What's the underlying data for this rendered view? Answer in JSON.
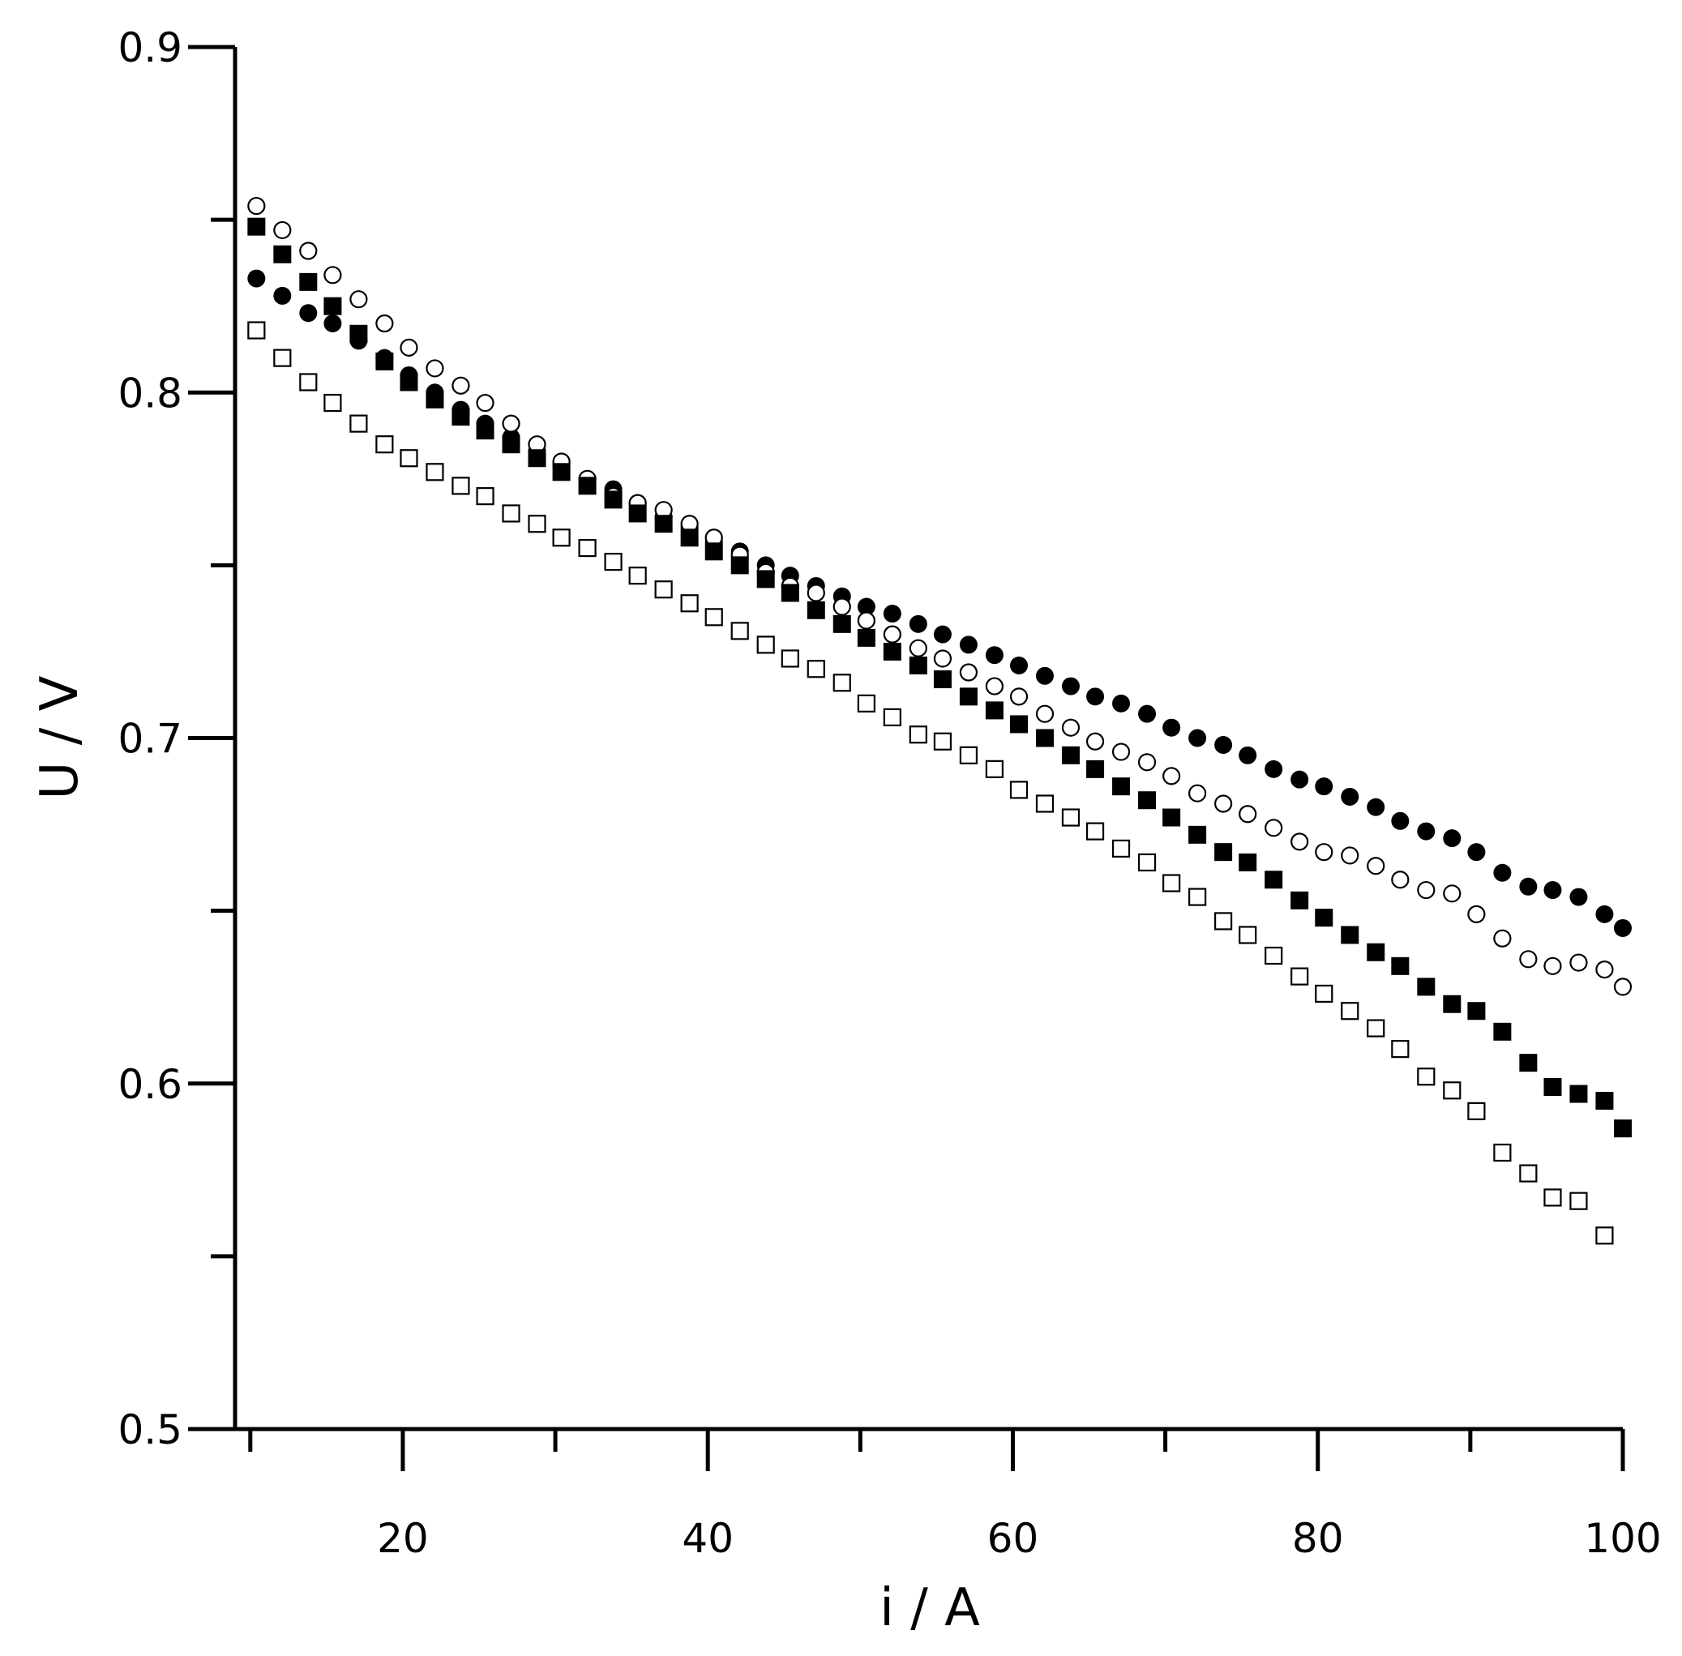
{
  "chart_data": {
    "type": "scatter",
    "title": "",
    "xlabel": "i / A",
    "ylabel": "U / V",
    "xlim": [
      9,
      100
    ],
    "ylim": [
      0.5,
      0.9
    ],
    "x_ticks_major": [
      20,
      40,
      60,
      80,
      100
    ],
    "x_ticks_minor": [
      10,
      30,
      50,
      70,
      90
    ],
    "y_ticks_major": [
      0.5,
      0.6,
      0.7,
      0.8,
      0.9
    ],
    "y_ticks_minor": [
      0.55,
      0.65,
      0.75,
      0.85
    ],
    "y_tick_labels": [
      "0.5",
      "0.6",
      "0.7",
      "0.8",
      "0.9"
    ],
    "x_tick_labels": [
      "20",
      "40",
      "60",
      "80",
      "100"
    ],
    "grid": false,
    "legend": "none",
    "series": [
      {
        "marker": "filled-circle",
        "color": "#000000",
        "points": [
          [
            10.4,
            0.833
          ],
          [
            12.1,
            0.828
          ],
          [
            13.8,
            0.823
          ],
          [
            15.4,
            0.82
          ],
          [
            17.1,
            0.815
          ],
          [
            18.8,
            0.81
          ],
          [
            20.4,
            0.805
          ],
          [
            22.1,
            0.8
          ],
          [
            23.8,
            0.795
          ],
          [
            25.4,
            0.791
          ],
          [
            27.1,
            0.787
          ],
          [
            28.8,
            0.783
          ],
          [
            30.4,
            0.779
          ],
          [
            32.1,
            0.775
          ],
          [
            33.8,
            0.772
          ],
          [
            35.4,
            0.768
          ],
          [
            37.1,
            0.764
          ],
          [
            38.8,
            0.761
          ],
          [
            40.4,
            0.757
          ],
          [
            42.1,
            0.754
          ],
          [
            43.8,
            0.75
          ],
          [
            45.4,
            0.747
          ],
          [
            47.1,
            0.744
          ],
          [
            48.8,
            0.741
          ],
          [
            50.4,
            0.738
          ],
          [
            52.1,
            0.736
          ],
          [
            53.8,
            0.733
          ],
          [
            55.4,
            0.73
          ],
          [
            57.1,
            0.727
          ],
          [
            58.8,
            0.724
          ],
          [
            60.4,
            0.721
          ],
          [
            62.1,
            0.718
          ],
          [
            63.8,
            0.715
          ],
          [
            65.4,
            0.712
          ],
          [
            67.1,
            0.71
          ],
          [
            68.8,
            0.707
          ],
          [
            70.4,
            0.703
          ],
          [
            72.1,
            0.7
          ],
          [
            73.8,
            0.698
          ],
          [
            75.4,
            0.695
          ],
          [
            77.1,
            0.691
          ],
          [
            78.8,
            0.688
          ],
          [
            80.4,
            0.686
          ],
          [
            82.1,
            0.683
          ],
          [
            83.8,
            0.68
          ],
          [
            85.4,
            0.676
          ],
          [
            87.1,
            0.673
          ],
          [
            88.8,
            0.671
          ],
          [
            90.4,
            0.667
          ],
          [
            92.1,
            0.661
          ],
          [
            93.8,
            0.657
          ],
          [
            95.4,
            0.656
          ],
          [
            97.1,
            0.654
          ],
          [
            98.8,
            0.649
          ],
          [
            100.0,
            0.645
          ]
        ]
      },
      {
        "marker": "open-circle",
        "color": "#000000",
        "points": [
          [
            10.4,
            0.854
          ],
          [
            12.1,
            0.847
          ],
          [
            13.8,
            0.841
          ],
          [
            15.4,
            0.834
          ],
          [
            17.1,
            0.827
          ],
          [
            18.8,
            0.82
          ],
          [
            20.4,
            0.813
          ],
          [
            22.1,
            0.807
          ],
          [
            23.8,
            0.802
          ],
          [
            25.4,
            0.797
          ],
          [
            27.1,
            0.791
          ],
          [
            28.8,
            0.785
          ],
          [
            30.4,
            0.78
          ],
          [
            32.1,
            0.775
          ],
          [
            33.8,
            0.77
          ],
          [
            35.4,
            0.768
          ],
          [
            37.1,
            0.766
          ],
          [
            38.8,
            0.762
          ],
          [
            40.4,
            0.758
          ],
          [
            42.1,
            0.753
          ],
          [
            43.8,
            0.748
          ],
          [
            45.4,
            0.744
          ],
          [
            47.1,
            0.742
          ],
          [
            48.8,
            0.738
          ],
          [
            50.4,
            0.734
          ],
          [
            52.1,
            0.73
          ],
          [
            53.8,
            0.726
          ],
          [
            55.4,
            0.723
          ],
          [
            57.1,
            0.719
          ],
          [
            58.8,
            0.715
          ],
          [
            60.4,
            0.712
          ],
          [
            62.1,
            0.707
          ],
          [
            63.8,
            0.703
          ],
          [
            65.4,
            0.699
          ],
          [
            67.1,
            0.696
          ],
          [
            68.8,
            0.693
          ],
          [
            70.4,
            0.689
          ],
          [
            72.1,
            0.684
          ],
          [
            73.8,
            0.681
          ],
          [
            75.4,
            0.678
          ],
          [
            77.1,
            0.674
          ],
          [
            78.8,
            0.67
          ],
          [
            80.4,
            0.667
          ],
          [
            82.1,
            0.666
          ],
          [
            83.8,
            0.663
          ],
          [
            85.4,
            0.659
          ],
          [
            87.1,
            0.656
          ],
          [
            88.8,
            0.655
          ],
          [
            90.4,
            0.649
          ],
          [
            92.1,
            0.642
          ],
          [
            93.8,
            0.636
          ],
          [
            95.4,
            0.634
          ],
          [
            97.1,
            0.635
          ],
          [
            98.8,
            0.633
          ],
          [
            100.0,
            0.628
          ]
        ]
      },
      {
        "marker": "filled-square",
        "color": "#000000",
        "points": [
          [
            10.4,
            0.848
          ],
          [
            12.1,
            0.84
          ],
          [
            13.8,
            0.832
          ],
          [
            15.4,
            0.825
          ],
          [
            17.1,
            0.817
          ],
          [
            18.8,
            0.809
          ],
          [
            20.4,
            0.803
          ],
          [
            22.1,
            0.798
          ],
          [
            23.8,
            0.793
          ],
          [
            25.4,
            0.789
          ],
          [
            27.1,
            0.785
          ],
          [
            28.8,
            0.781
          ],
          [
            30.4,
            0.777
          ],
          [
            32.1,
            0.773
          ],
          [
            33.8,
            0.769
          ],
          [
            35.4,
            0.765
          ],
          [
            37.1,
            0.762
          ],
          [
            38.8,
            0.758
          ],
          [
            40.4,
            0.754
          ],
          [
            42.1,
            0.75
          ],
          [
            43.8,
            0.746
          ],
          [
            45.4,
            0.742
          ],
          [
            47.1,
            0.737
          ],
          [
            48.8,
            0.733
          ],
          [
            50.4,
            0.729
          ],
          [
            52.1,
            0.725
          ],
          [
            53.8,
            0.721
          ],
          [
            55.4,
            0.717
          ],
          [
            57.1,
            0.712
          ],
          [
            58.8,
            0.708
          ],
          [
            60.4,
            0.704
          ],
          [
            62.1,
            0.7
          ],
          [
            63.8,
            0.695
          ],
          [
            65.4,
            0.691
          ],
          [
            67.1,
            0.686
          ],
          [
            68.8,
            0.682
          ],
          [
            70.4,
            0.677
          ],
          [
            72.1,
            0.672
          ],
          [
            73.8,
            0.667
          ],
          [
            75.4,
            0.664
          ],
          [
            77.1,
            0.659
          ],
          [
            78.8,
            0.653
          ],
          [
            80.4,
            0.648
          ],
          [
            82.1,
            0.643
          ],
          [
            83.8,
            0.638
          ],
          [
            85.4,
            0.634
          ],
          [
            87.1,
            0.628
          ],
          [
            88.8,
            0.623
          ],
          [
            90.4,
            0.621
          ],
          [
            92.1,
            0.615
          ],
          [
            93.8,
            0.606
          ],
          [
            95.4,
            0.599
          ],
          [
            97.1,
            0.597
          ],
          [
            98.8,
            0.595
          ],
          [
            100.0,
            0.587
          ]
        ]
      },
      {
        "marker": "open-square",
        "color": "#000000",
        "points": [
          [
            10.4,
            0.818
          ],
          [
            12.1,
            0.81
          ],
          [
            13.8,
            0.803
          ],
          [
            15.4,
            0.797
          ],
          [
            17.1,
            0.791
          ],
          [
            18.8,
            0.785
          ],
          [
            20.4,
            0.781
          ],
          [
            22.1,
            0.777
          ],
          [
            23.8,
            0.773
          ],
          [
            25.4,
            0.77
          ],
          [
            27.1,
            0.765
          ],
          [
            28.8,
            0.762
          ],
          [
            30.4,
            0.758
          ],
          [
            32.1,
            0.755
          ],
          [
            33.8,
            0.751
          ],
          [
            35.4,
            0.747
          ],
          [
            37.1,
            0.743
          ],
          [
            38.8,
            0.739
          ],
          [
            40.4,
            0.735
          ],
          [
            42.1,
            0.731
          ],
          [
            43.8,
            0.727
          ],
          [
            45.4,
            0.723
          ],
          [
            47.1,
            0.72
          ],
          [
            48.8,
            0.716
          ],
          [
            50.4,
            0.71
          ],
          [
            52.1,
            0.706
          ],
          [
            53.8,
            0.701
          ],
          [
            55.4,
            0.699
          ],
          [
            57.1,
            0.695
          ],
          [
            58.8,
            0.691
          ],
          [
            60.4,
            0.685
          ],
          [
            62.1,
            0.681
          ],
          [
            63.8,
            0.677
          ],
          [
            65.4,
            0.673
          ],
          [
            67.1,
            0.668
          ],
          [
            68.8,
            0.664
          ],
          [
            70.4,
            0.658
          ],
          [
            72.1,
            0.654
          ],
          [
            73.8,
            0.647
          ],
          [
            75.4,
            0.643
          ],
          [
            77.1,
            0.637
          ],
          [
            78.8,
            0.631
          ],
          [
            80.4,
            0.626
          ],
          [
            82.1,
            0.621
          ],
          [
            83.8,
            0.616
          ],
          [
            85.4,
            0.61
          ],
          [
            87.1,
            0.602
          ],
          [
            88.8,
            0.598
          ],
          [
            90.4,
            0.592
          ],
          [
            92.1,
            0.58
          ],
          [
            93.8,
            0.574
          ],
          [
            95.4,
            0.567
          ],
          [
            97.1,
            0.566
          ],
          [
            98.8,
            0.556
          ]
        ]
      }
    ]
  }
}
